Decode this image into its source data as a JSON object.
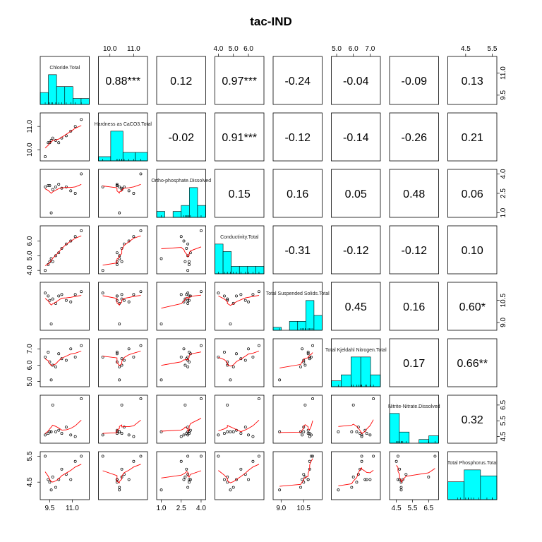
{
  "chart_data": {
    "type": "scatter-matrix",
    "title": "tac-IND",
    "colors": {
      "hist_fill": "#00FFFF",
      "smooth": "#FF0000",
      "point": "#000000",
      "frame": "#000000"
    },
    "variables": [
      {
        "name": "Chloride.Total",
        "range": [
          9.0,
          12.0
        ],
        "ticks": [
          9.5,
          11.0
        ],
        "tick_labels": [
          "9.5",
          "11.0"
        ],
        "axis_side": "right",
        "values": [
          9.2,
          9.4,
          9.5,
          9.6,
          9.7,
          9.9,
          10.1,
          10.3,
          10.6,
          10.9,
          11.2,
          11.6
        ],
        "hist": [
          2,
          5,
          3,
          3,
          1,
          1
        ]
      },
      {
        "name": "Hardness as CaCO3.Total",
        "range": [
          9.6,
          11.5
        ],
        "ticks": [
          10.0,
          11.0
        ],
        "tick_labels": [
          "10.0",
          "11.0"
        ],
        "axis_side": "left",
        "values": [
          9.7,
          10.3,
          10.3,
          10.4,
          10.5,
          10.4,
          10.3,
          10.5,
          10.6,
          10.8,
          11.0,
          11.3
        ],
        "hist": [
          1,
          7,
          2,
          2
        ]
      },
      {
        "name": "Ortho-phosphate.Dissolved",
        "range": [
          0.8,
          4.2
        ],
        "ticks": [
          1.0,
          2.5,
          4.0
        ],
        "tick_labels": [
          "1.0",
          "2.5",
          "4.0"
        ],
        "axis_side": "right",
        "values": [
          3.0,
          3.1,
          3.1,
          1.0,
          2.8,
          3.0,
          3.2,
          2.9,
          3.0,
          2.7,
          2.5,
          4.0
        ],
        "hist": [
          1,
          0,
          1,
          2,
          5,
          2
        ]
      },
      {
        "name": "Conductivity.Total",
        "range": [
          3.9,
          6.9
        ],
        "ticks": [
          4.0,
          5.0,
          6.0
        ],
        "tick_labels": [
          "4.0",
          "5.0",
          "6.0"
        ],
        "axis_side": "left",
        "values": [
          4.0,
          4.4,
          4.6,
          4.8,
          4.6,
          5.0,
          5.2,
          5.5,
          5.8,
          6.0,
          6.3,
          6.7
        ],
        "hist": [
          4,
          3,
          1,
          1,
          1,
          1
        ]
      },
      {
        "name": "Total Suspended Solids.Total",
        "range": [
          8.6,
          11.6
        ],
        "ticks": [
          9.0,
          10.5
        ],
        "tick_labels": [
          "9.0",
          "10.5"
        ],
        "axis_side": "right",
        "values": [
          11.0,
          10.8,
          10.5,
          8.9,
          10.6,
          10.3,
          10.8,
          10.9,
          10.5,
          10.4,
          10.9,
          11.1
        ],
        "hist": [
          1,
          0,
          3,
          3,
          10,
          5
        ]
      },
      {
        "name": "Total Kjeldahl Nitrogen.Total",
        "range": [
          4.8,
          7.5
        ],
        "ticks": [
          5.0,
          6.0,
          7.0
        ],
        "tick_labels": [
          "5.0",
          "6.0",
          "7.0"
        ],
        "axis_side": "left",
        "values": [
          6.5,
          6.8,
          6.2,
          5.1,
          6.0,
          5.9,
          6.7,
          6.4,
          6.3,
          7.0,
          6.5,
          7.2
        ],
        "hist": [
          1,
          2,
          5,
          5,
          2
        ]
      },
      {
        "name": "Nitrite-Nitrate.Dissolved",
        "range": [
          4.2,
          7.0
        ],
        "ticks": [
          4.5,
          5.5,
          6.5
        ],
        "tick_labels": [
          "4.5",
          "5.5",
          "6.5"
        ],
        "axis_side": "right",
        "values": [
          4.6,
          4.7,
          4.8,
          4.8,
          6.5,
          4.8,
          4.9,
          4.7,
          5.1,
          4.6,
          4.5,
          6.9
        ],
        "hist": [
          8,
          3,
          0,
          1,
          2
        ]
      },
      {
        "name": "Total Phosphorus.Total",
        "range": [
          3.9,
          5.6
        ],
        "ticks": [
          4.5,
          5.5
        ],
        "tick_labels": [
          "4.5",
          "5.5"
        ],
        "axis_side": "left",
        "values": [
          5.5,
          4.6,
          4.5,
          4.2,
          4.7,
          4.3,
          4.6,
          5.0,
          4.8,
          4.6,
          5.3,
          5.5
        ],
        "hist": [
          3,
          5,
          4
        ]
      }
    ],
    "correlations": [
      [
        "",
        "0.88***",
        "0.12",
        "0.97***",
        "-0.24",
        "-0.04",
        "-0.09",
        "0.13"
      ],
      [
        "",
        "",
        "-0.02",
        "0.91***",
        "-0.12",
        "-0.14",
        "-0.26",
        "0.21"
      ],
      [
        "",
        "",
        "",
        "0.15",
        "0.16",
        "0.05",
        "0.48",
        "0.06"
      ],
      [
        "",
        "",
        "",
        "",
        "-0.31",
        "-0.12",
        "-0.12",
        "0.10"
      ],
      [
        "",
        "",
        "",
        "",
        "",
        "0.45",
        "0.16",
        "0.60*"
      ],
      [
        "",
        "",
        "",
        "",
        "",
        "",
        "0.17",
        "0.66**"
      ],
      [
        "",
        "",
        "",
        "",
        "",
        "",
        "",
        "0.32"
      ],
      [
        "",
        "",
        "",
        "",
        "",
        "",
        "",
        ""
      ]
    ]
  }
}
